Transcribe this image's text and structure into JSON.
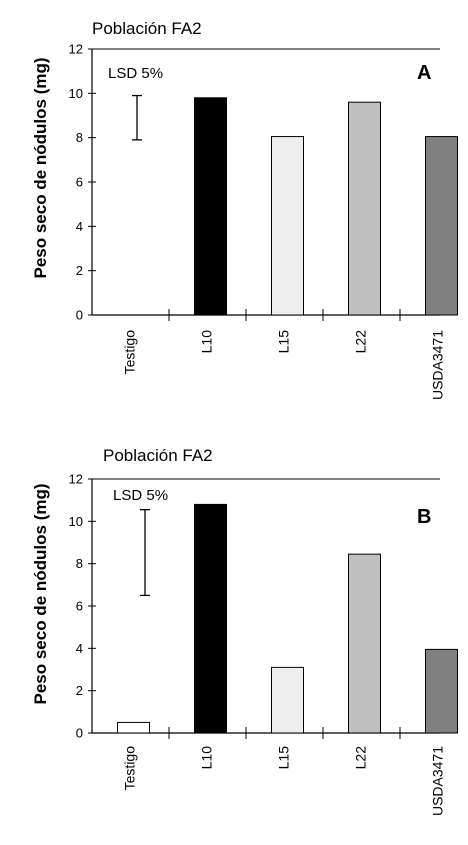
{
  "chart_data": [
    {
      "type": "bar",
      "title": "Población FA2",
      "panel_label": "A",
      "ylabel": "Peso seco de nódulos (mg)",
      "xlabel": "",
      "categories": [
        "Testigo",
        "L10",
        "L15",
        "L22",
        "USDA3471"
      ],
      "values": [
        0,
        9.8,
        8.05,
        9.6,
        8.05
      ],
      "colors": [
        "#ffffff",
        "#000000",
        "#eeeeee",
        "#c0c0c0",
        "#808080"
      ],
      "ylim": [
        0,
        12
      ],
      "yticks": [
        "0",
        "2",
        "4",
        "6",
        "8",
        "10",
        "12"
      ],
      "lsd_label": "LSD 5%",
      "lsd_range": [
        7.9,
        9.9
      ],
      "grid": false,
      "legend": "none"
    },
    {
      "type": "bar",
      "title": "Población FA2",
      "panel_label": "B",
      "ylabel": "Peso seco de nódulos (mg)",
      "xlabel": "",
      "categories": [
        "Testigo",
        "L10",
        "L15",
        "L22",
        "USDA3471"
      ],
      "values": [
        0.5,
        10.8,
        3.1,
        8.45,
        3.95
      ],
      "colors": [
        "#ffffff",
        "#000000",
        "#eeeeee",
        "#c0c0c0",
        "#808080"
      ],
      "ylim": [
        0,
        12
      ],
      "yticks": [
        "0",
        "2",
        "4",
        "6",
        "8",
        "10",
        "12"
      ],
      "lsd_label": "LSD 5%",
      "lsd_range": [
        6.5,
        10.55
      ],
      "grid": false,
      "legend": "none"
    }
  ]
}
